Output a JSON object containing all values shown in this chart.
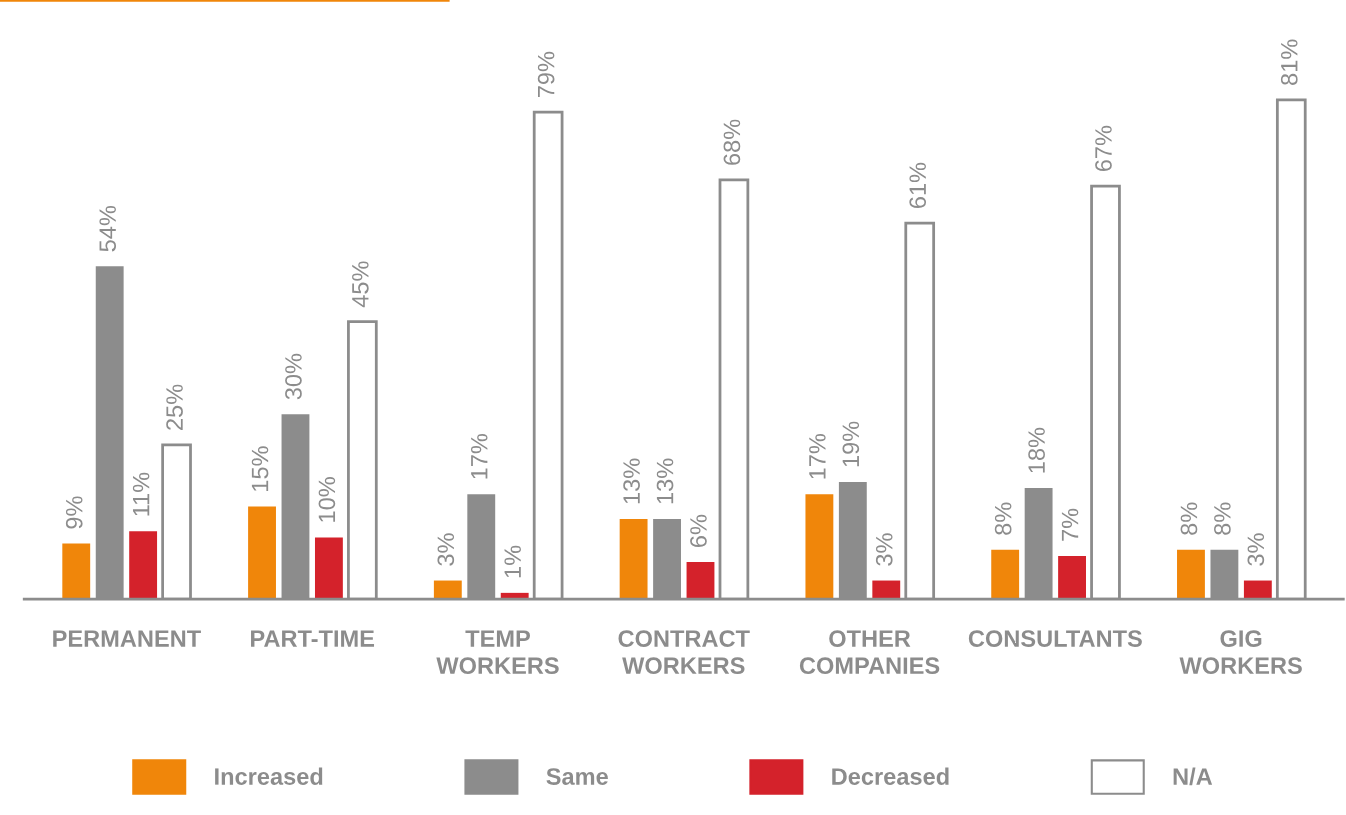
{
  "chart_data": {
    "type": "bar",
    "categories": [
      "PERMANENT",
      "PART-TIME",
      "TEMP\nWORKERS",
      "CONTRACT\nWORKERS",
      "OTHER\nCOMPANIES",
      "CONSULTANTS",
      "GIG\nWORKERS"
    ],
    "series": [
      {
        "name": "Increased",
        "color": "#f0860a",
        "values": [
          9,
          15,
          3,
          13,
          17,
          8,
          8
        ],
        "value_labels": [
          "9%",
          "15%",
          "3%",
          "13%",
          "17%",
          "8%",
          "8%"
        ]
      },
      {
        "name": "Same",
        "color": "#8c8c8c",
        "values": [
          54,
          30,
          17,
          13,
          19,
          18,
          8
        ],
        "value_labels": [
          "54%",
          "30%",
          "17%",
          "13%",
          "19%",
          "18%",
          "8%"
        ]
      },
      {
        "name": "Decreased",
        "color": "#d4222b",
        "values": [
          11,
          10,
          1,
          6,
          3,
          7,
          3
        ],
        "value_labels": [
          "11%",
          "10%",
          "1%",
          "6%",
          "3%",
          "7%",
          "3%"
        ]
      },
      {
        "name": "N/A",
        "color": "#ffffff",
        "values": [
          25,
          45,
          79,
          68,
          61,
          67,
          81
        ],
        "value_labels": [
          "25%",
          "45%",
          "79%",
          "68%",
          "61%",
          "67%",
          "81%"
        ]
      }
    ],
    "legend": "bottom"
  }
}
